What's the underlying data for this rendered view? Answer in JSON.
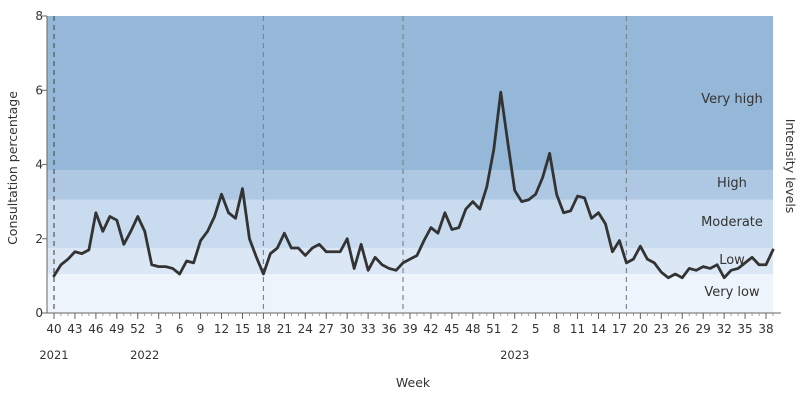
{
  "chart_data": {
    "type": "line",
    "xlabel": "Week",
    "ylabel": "Consultation percentage",
    "ylim": [
      0,
      8
    ],
    "yticks": [
      0,
      2,
      4,
      6,
      8
    ],
    "intensity_axis_title": "Intensity levels",
    "band_colors": [
      "#eef4fb",
      "#dbe7f4",
      "#c8dbef",
      "#aec8e4",
      "#95b7d8"
    ],
    "line_color": "#333333",
    "bands": [
      {
        "name": "Very low",
        "from": 0,
        "to": 1.05
      },
      {
        "name": "Low",
        "from": 1.05,
        "to": 1.75
      },
      {
        "name": "Moderate",
        "from": 1.75,
        "to": 3.05
      },
      {
        "name": "High",
        "from": 3.05,
        "to": 3.85
      },
      {
        "name": "Very high",
        "from": 3.85,
        "to": 8
      }
    ],
    "x_tick_labels": [
      "40",
      "43",
      "46",
      "49",
      "52",
      "3",
      "6",
      "9",
      "12",
      "15",
      "18",
      "21",
      "24",
      "27",
      "30",
      "33",
      "36",
      "39",
      "42",
      "45",
      "48",
      "51",
      "2",
      "5",
      "8",
      "11",
      "14",
      "17",
      "20",
      "23",
      "26",
      "29",
      "32",
      "35",
      "38"
    ],
    "years": [
      {
        "label": "2021",
        "at_index": 0
      },
      {
        "label": "2022",
        "at_index": 13
      },
      {
        "label": "2023",
        "at_index": 66
      }
    ],
    "season_dividers_at_index": [
      30,
      50,
      82
    ],
    "series": [
      {
        "values": [
          1.0,
          1.3,
          1.45,
          1.65,
          1.6,
          1.7,
          2.7,
          2.2,
          2.6,
          2.5,
          1.85,
          2.2,
          2.6,
          2.2,
          1.3,
          1.25,
          1.25,
          1.2,
          1.05,
          1.4,
          1.35,
          1.95,
          2.2,
          2.6,
          3.2,
          2.7,
          2.55,
          3.35,
          2.0,
          1.5,
          1.05,
          1.6,
          1.75,
          2.15,
          1.75,
          1.75,
          1.55,
          1.75,
          1.85,
          1.65,
          1.65,
          1.65,
          2.0,
          1.2,
          1.85,
          1.15,
          1.5,
          1.3,
          1.2,
          1.15,
          1.35,
          1.45,
          1.55,
          1.95,
          2.3,
          2.15,
          2.7,
          2.25,
          2.3,
          2.8,
          3.0,
          2.8,
          3.4,
          4.4,
          5.95,
          4.6,
          3.3,
          3.0,
          3.05,
          3.2,
          3.65,
          4.3,
          3.2,
          2.7,
          2.75,
          3.15,
          3.1,
          2.55,
          2.7,
          2.4,
          1.65,
          1.95,
          1.35,
          1.45,
          1.8,
          1.45,
          1.35,
          1.1,
          0.95,
          1.05,
          0.95,
          1.2,
          1.15,
          1.25,
          1.2,
          1.3,
          0.95,
          1.15,
          1.2,
          1.35,
          1.5,
          1.3,
          1.3,
          1.7
        ]
      }
    ]
  }
}
